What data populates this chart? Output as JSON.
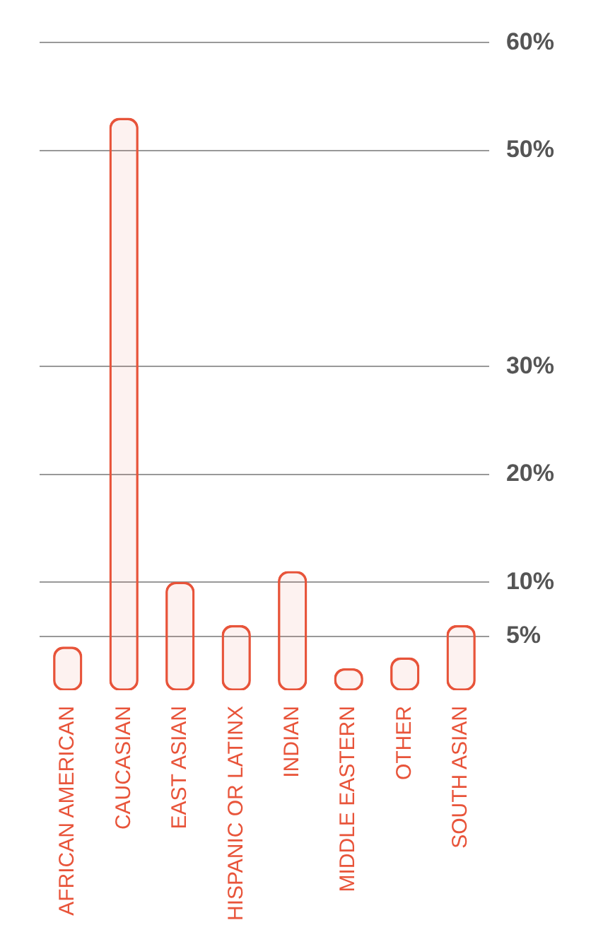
{
  "chart_data": {
    "type": "bar",
    "categories": [
      "AFRICAN AMERICAN",
      "CAUCASIAN",
      "EAST ASIAN",
      "HISPANIC OR LATINX",
      "INDIAN",
      "MIDDLE EASTERN",
      "OTHER",
      "SOUTH ASIAN"
    ],
    "values": [
      4,
      53,
      10,
      6,
      11,
      2,
      3,
      6
    ],
    "color": "#e8543a",
    "ylim": [
      0,
      60
    ],
    "yticks": [
      {
        "value": 5,
        "label": "5%"
      },
      {
        "value": 10,
        "label": "10%"
      },
      {
        "value": 20,
        "label": "20%"
      },
      {
        "value": 30,
        "label": "30%"
      },
      {
        "value": 50,
        "label": "50%"
      },
      {
        "value": 60,
        "label": "60%"
      }
    ],
    "grid": "y",
    "legend": false
  }
}
